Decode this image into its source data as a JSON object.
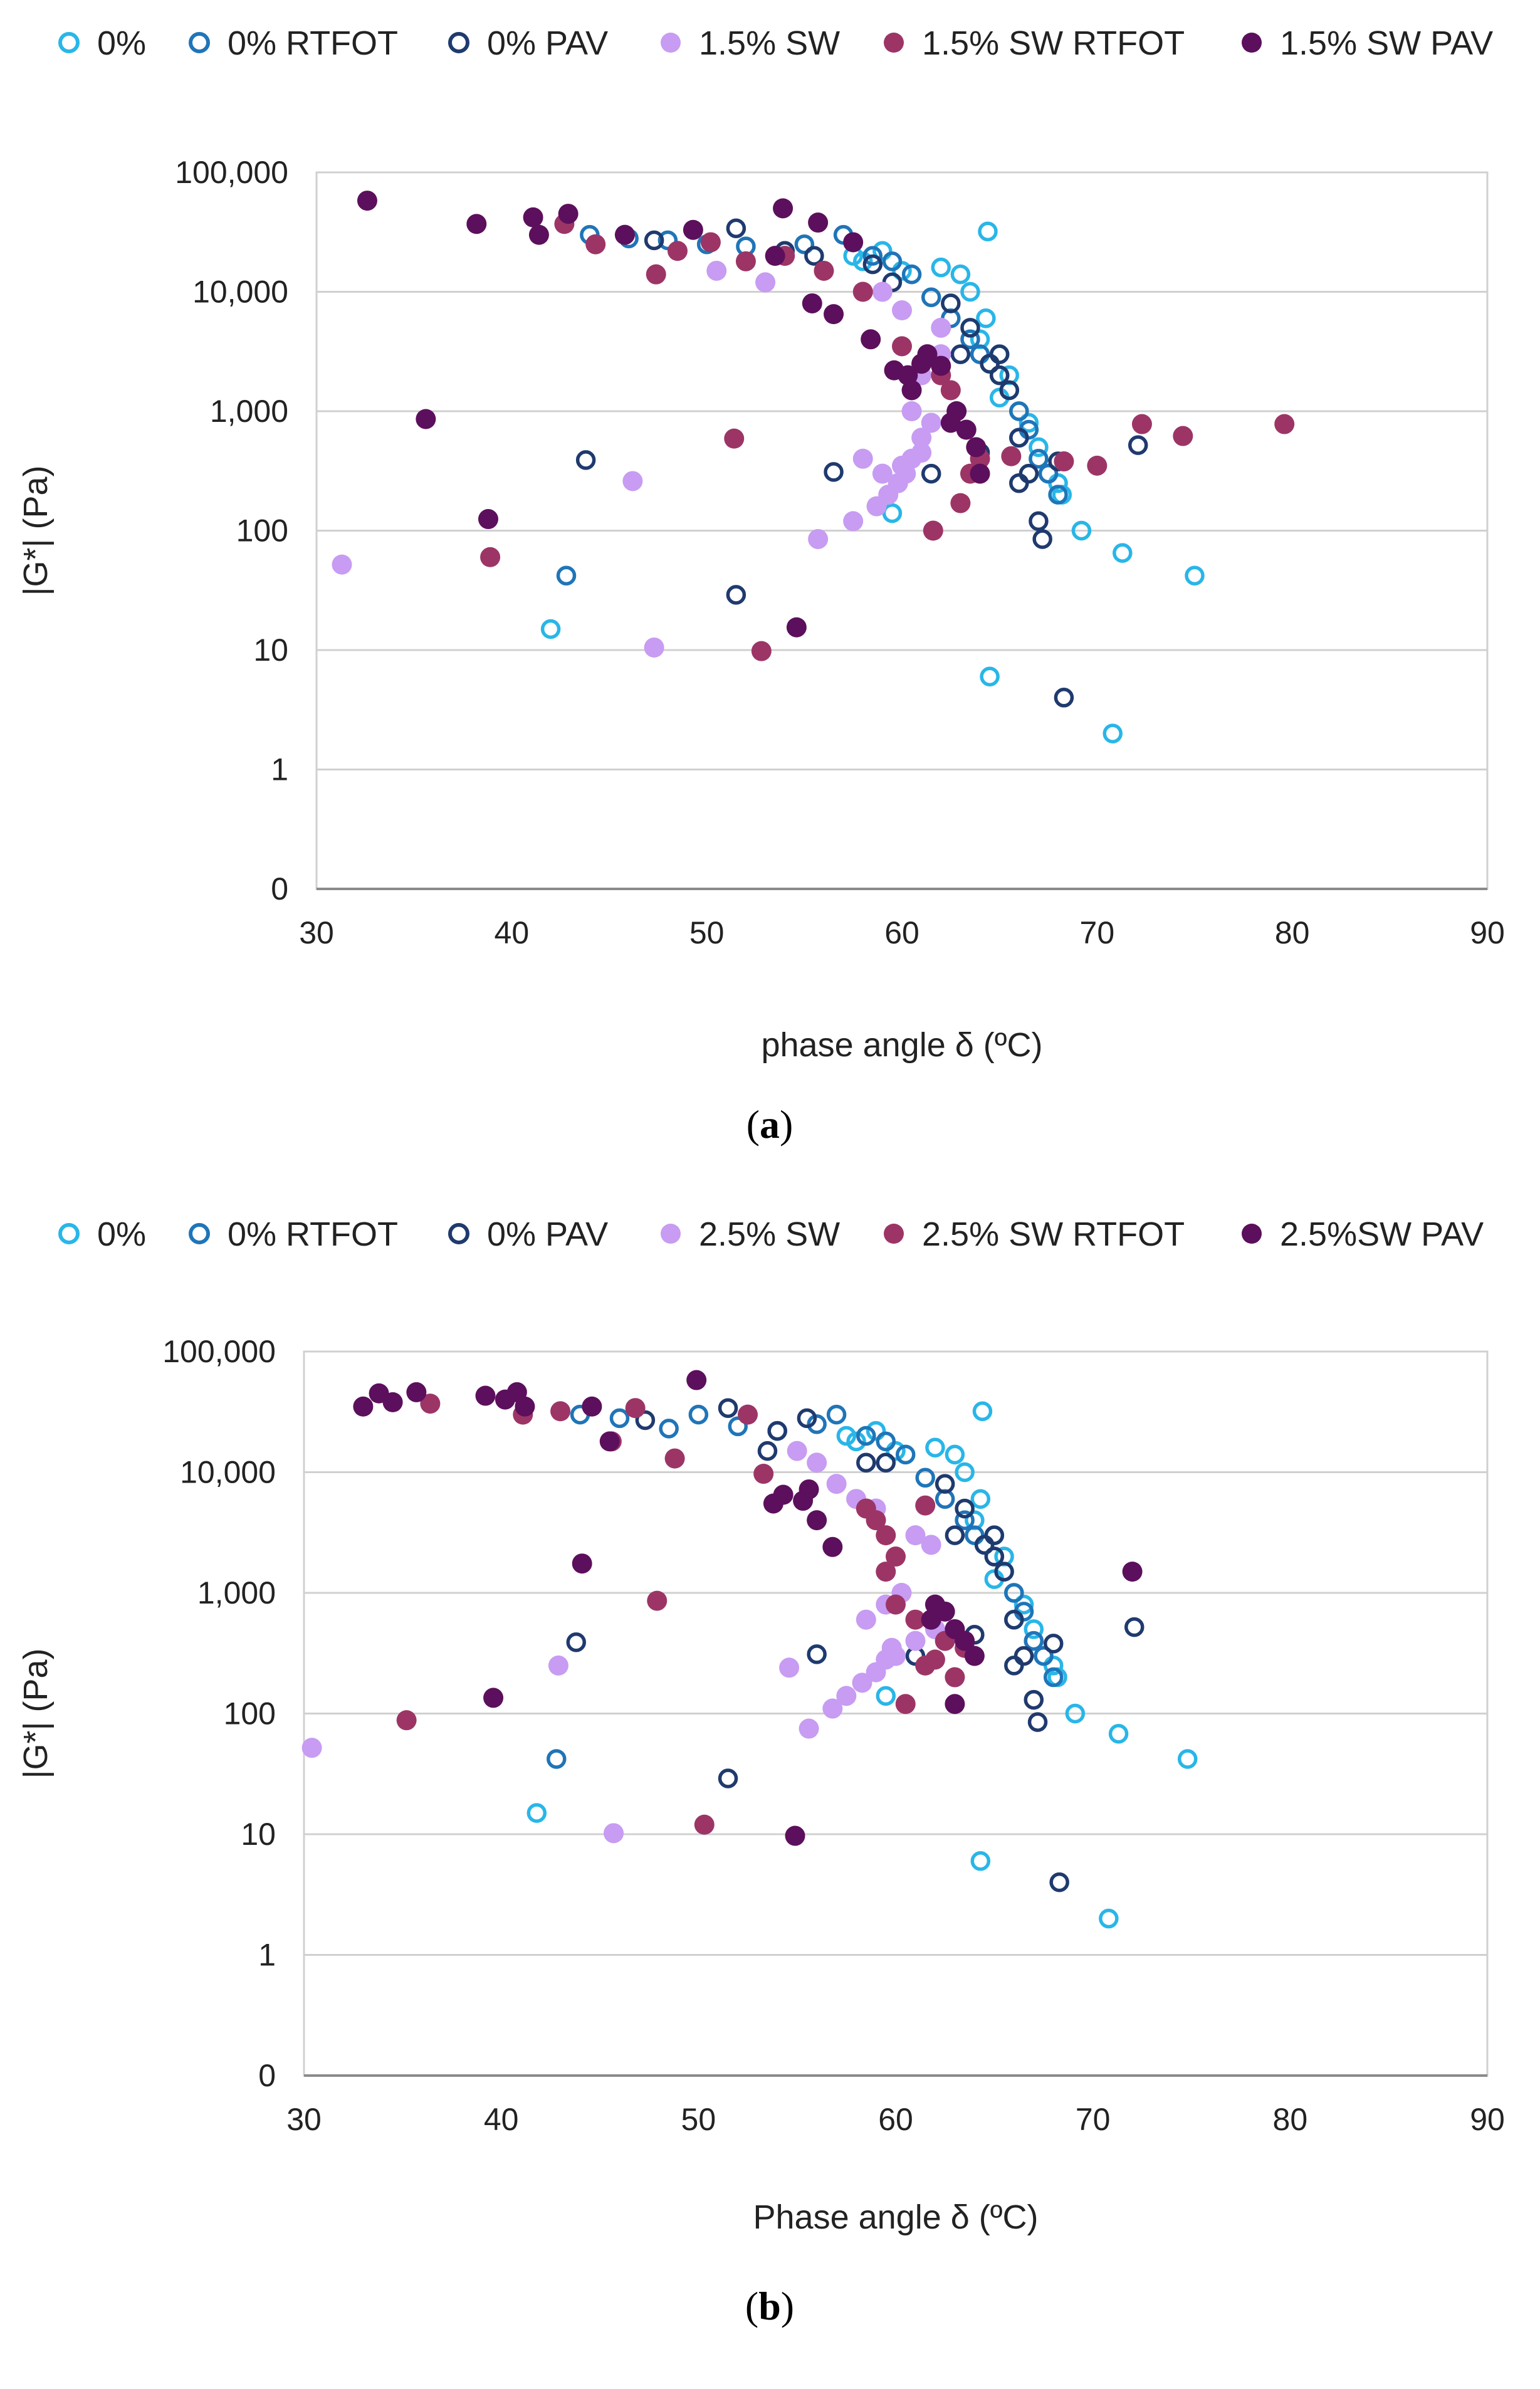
{
  "colors": {
    "0%": "#29b6e8",
    "0% RTFOT": "#1f75b8",
    "0% PAV": "#1f3a6e",
    "SW": "#c79cf2",
    "SW RTFOT": "#9c3566",
    "SW PAV": "#5c0f5c",
    "grid": "#d0d0d0",
    "axis": "#8a8a8a"
  },
  "chart_data": [
    {
      "panel": "a",
      "type": "scatter",
      "xscale": "linear",
      "yscale": "log",
      "xlabel": "phase angle δ (ºC)",
      "ylabel": "|G*| (Pa)",
      "xlim": [
        30,
        90
      ],
      "ylim": [
        0.1,
        100000
      ],
      "xticks": [
        30,
        40,
        50,
        60,
        70,
        80,
        90
      ],
      "yticks": [
        0.1,
        1,
        10,
        100,
        1000,
        10000,
        100000
      ],
      "ytick_labels": [
        "0",
        "1",
        "10",
        "100",
        "1,000",
        "10,000",
        "100,000"
      ],
      "caption_open": "(",
      "caption_letter": "a",
      "caption_close": ")",
      "series": [
        {
          "name": "0%",
          "marker": "open",
          "color_key": "0%",
          "x": [
            42,
            59.5,
            64.5,
            64.4,
            65,
            66,
            67,
            68,
            69.2,
            71.3,
            75,
            64.3,
            70.8,
            58,
            62,
            63,
            64,
            65.5,
            66.5,
            67.5,
            68.2,
            57.5,
            59,
            60,
            63.5,
            65,
            66,
            67
          ],
          "y": [
            15,
            140,
            6,
            32000,
            1300,
            600,
            400,
            250,
            100,
            65,
            42,
            6000,
            2,
            18000,
            16000,
            14000,
            4000,
            2000,
            800,
            300,
            200,
            20000,
            22000,
            15000,
            10000,
            3000,
            1000,
            500
          ]
        },
        {
          "name": "0% RTFOT",
          "marker": "open",
          "color_key": "0% RTFOT",
          "x": [
            42.8,
            44,
            46,
            48,
            50,
            52,
            54,
            55,
            57,
            58.5,
            59.5,
            60.5,
            61.5,
            62.5,
            63.5,
            64,
            64.5,
            65,
            65.5,
            66,
            66.5,
            67,
            67.5,
            68
          ],
          "y": [
            42,
            30000,
            28000,
            27000,
            25000,
            24000,
            22000,
            25000,
            30000,
            20000,
            18000,
            14000,
            9000,
            6000,
            4000,
            3000,
            2500,
            2000,
            1500,
            1000,
            700,
            400,
            300,
            200
          ]
        },
        {
          "name": "0% PAV",
          "marker": "open",
          "color_key": "0% PAV",
          "x": [
            43.8,
            47.3,
            51.5,
            51.5,
            53,
            54,
            55.5,
            56.5,
            58.5,
            59.5,
            61.5,
            62.5,
            63,
            63.5,
            64.5,
            65,
            65.5,
            66,
            66.5,
            67,
            67.2,
            68.3,
            72.1,
            68,
            64,
            65,
            66
          ],
          "y": [
            390,
            27000,
            29,
            34000,
            12000,
            22000,
            20000,
            310,
            17000,
            12000,
            300,
            8000,
            3000,
            5000,
            2500,
            3000,
            1500,
            600,
            300,
            120,
            85,
            4,
            520,
            380,
            450,
            2000,
            250
          ]
        },
        {
          "name": "1.5% SW",
          "marker": "filled",
          "color_key": "SW",
          "x": [
            31.3,
            46.2,
            47.3,
            50.5,
            53,
            55.7,
            57.5,
            58.7,
            59.3,
            59.8,
            60.2,
            60.5,
            61,
            61.5,
            62,
            59,
            60,
            60.5,
            61,
            58,
            59,
            60,
            61,
            62
          ],
          "y": [
            52,
            260,
            10.5,
            15000,
            12000,
            85,
            120,
            160,
            200,
            250,
            300,
            400,
            600,
            800,
            5000,
            10000,
            7000,
            1000,
            2000,
            400,
            300,
            350,
            450,
            3000
          ]
        },
        {
          "name": "1.5% SW RTFOT",
          "marker": "filled",
          "color_key": "SW RTFOT",
          "x": [
            38.9,
            42.7,
            44.3,
            47.4,
            48.5,
            50.2,
            51.4,
            52,
            52.8,
            54,
            56,
            58,
            60,
            61,
            61.6,
            62,
            62.5,
            63,
            63.5,
            64,
            65.6,
            68.3,
            70,
            72.3,
            74.4,
            79.6
          ],
          "y": [
            60,
            37000,
            25000,
            14000,
            22000,
            26000,
            590,
            18000,
            9.8,
            20000,
            15000,
            10000,
            3500,
            2500,
            100,
            2000,
            1500,
            170,
            300,
            400,
            420,
            380,
            350,
            780,
            620,
            780
          ]
        },
        {
          "name": "1.5% SW PAV",
          "marker": "filled",
          "color_key": "SW PAV",
          "x": [
            32.6,
            35.6,
            38.2,
            38.8,
            41.1,
            41.4,
            42.9,
            45.8,
            49.3,
            53.5,
            53.9,
            54.6,
            55.4,
            55.7,
            56.5,
            57.5,
            58.4,
            59.6,
            60.3,
            61.3,
            62,
            62.8,
            63.3,
            63.8,
            64,
            60.5,
            61,
            62.5
          ],
          "y": [
            58000,
            860,
            37000,
            125,
            42000,
            30000,
            45000,
            30000,
            33000,
            20000,
            50000,
            15.5,
            8000,
            38000,
            6500,
            26000,
            4000,
            2200,
            2000,
            3000,
            2400,
            1000,
            700,
            500,
            300,
            1500,
            2500,
            800
          ]
        }
      ]
    },
    {
      "panel": "b",
      "type": "scatter",
      "xscale": "linear",
      "yscale": "log",
      "xlabel": "Phase angle δ (ºC)",
      "ylabel": "|G*| (Pa)",
      "xlim": [
        30,
        90
      ],
      "ylim": [
        0.1,
        100000
      ],
      "xticks": [
        30,
        40,
        50,
        60,
        70,
        80,
        90
      ],
      "yticks": [
        0.1,
        1,
        10,
        100,
        1000,
        10000,
        100000
      ],
      "ytick_labels": [
        "0",
        "1",
        "10",
        "100",
        "1,000",
        "10,000",
        "100,000"
      ],
      "caption_open": "(",
      "caption_letter": "b",
      "caption_close": ")",
      "series": [
        {
          "name": "0%",
          "marker": "open",
          "color_key": "0%",
          "x": [
            41.8,
            59.5,
            64.3,
            64.4,
            65,
            66,
            67,
            68,
            69.1,
            71.3,
            74.8,
            64.3,
            70.8,
            58,
            62,
            63,
            64,
            65.5,
            66.5,
            67.5,
            68.2,
            57.5,
            59,
            60,
            63.5,
            65,
            66,
            67
          ],
          "y": [
            15,
            140,
            6,
            32000,
            1300,
            600,
            400,
            250,
            100,
            68,
            42,
            6000,
            2,
            18000,
            16000,
            14000,
            4000,
            2000,
            800,
            300,
            200,
            20000,
            22000,
            15000,
            10000,
            3000,
            1000,
            500
          ]
        },
        {
          "name": "0% RTFOT",
          "marker": "open",
          "color_key": "0% RTFOT",
          "x": [
            42.8,
            44,
            46,
            48.5,
            50,
            52,
            54,
            56,
            57,
            58.5,
            59.5,
            60.5,
            61.5,
            62.5,
            63.5,
            64,
            64.5,
            65,
            65.5,
            66,
            66.5,
            67,
            67.5,
            68
          ],
          "y": [
            42,
            30000,
            28000,
            23000,
            30000,
            24000,
            22000,
            25000,
            30000,
            20000,
            18000,
            14000,
            9000,
            6000,
            4000,
            3000,
            2500,
            2000,
            1500,
            1000,
            700,
            400,
            300,
            200
          ]
        },
        {
          "name": "0% PAV",
          "marker": "open",
          "color_key": "0% PAV",
          "x": [
            43.8,
            47.3,
            51.5,
            51.5,
            53.5,
            54,
            55.5,
            56,
            58.5,
            59.5,
            61,
            62.5,
            63,
            63.5,
            64.5,
            65,
            65.5,
            66,
            66.5,
            67,
            67.2,
            68.3,
            72.1,
            68,
            64,
            65,
            66
          ],
          "y": [
            390,
            27000,
            29,
            34000,
            15000,
            22000,
            28000,
            310,
            12000,
            12000,
            300,
            8000,
            3000,
            5000,
            2500,
            3000,
            1500,
            600,
            300,
            130,
            85,
            4,
            520,
            380,
            450,
            2000,
            250
          ]
        },
        {
          "name": "2.5% SW",
          "marker": "filled",
          "color_key": "SW",
          "x": [
            30.4,
            42.9,
            45.7,
            54.6,
            55.6,
            56.8,
            57.5,
            58.3,
            59,
            59.5,
            59.8,
            60.3,
            61,
            61.8,
            55,
            56,
            57,
            58,
            59,
            60,
            61,
            62,
            58.5,
            59.5
          ],
          "y": [
            52,
            250,
            10.2,
            240,
            75,
            110,
            140,
            180,
            220,
            280,
            350,
            1000,
            3000,
            2500,
            15000,
            12000,
            8000,
            6000,
            5000,
            300,
            400,
            500,
            600,
            800
          ]
        },
        {
          "name": "2.5% SW RTFOT",
          "marker": "filled",
          "color_key": "SW RTFOT",
          "x": [
            35.2,
            36.4,
            41.1,
            43,
            45.6,
            46.8,
            47.9,
            48.8,
            50.3,
            52.5,
            53.3,
            58.5,
            59,
            59.5,
            60,
            60.5,
            61,
            61.5,
            62,
            62.5,
            63,
            63.5,
            59.5,
            60,
            61.5
          ],
          "y": [
            88,
            37000,
            30000,
            32000,
            18000,
            34000,
            860,
            13000,
            12,
            30000,
            9700,
            5000,
            4000,
            3000,
            2000,
            120,
            600,
            5300,
            280,
            400,
            200,
            350,
            1500,
            800,
            250
          ]
        },
        {
          "name": "2.5%SW PAV",
          "marker": "filled",
          "color_key": "SW PAV",
          "x": [
            33,
            33.8,
            34.5,
            35.7,
            39.2,
            39.6,
            40.2,
            40.8,
            41.2,
            44.1,
            44.6,
            45.5,
            49.9,
            53.8,
            54.3,
            54.9,
            55.3,
            55.6,
            56,
            56.8,
            61.8,
            62.5,
            63,
            63.5,
            64,
            72,
            62,
            63
          ],
          "y": [
            35000,
            45000,
            38000,
            46000,
            43000,
            135,
            40000,
            46000,
            35000,
            1750,
            35000,
            18000,
            58000,
            5500,
            6500,
            9.7,
            5800,
            7200,
            4000,
            2400,
            600,
            700,
            120,
            400,
            300,
            1500,
            800,
            500
          ]
        }
      ]
    }
  ]
}
